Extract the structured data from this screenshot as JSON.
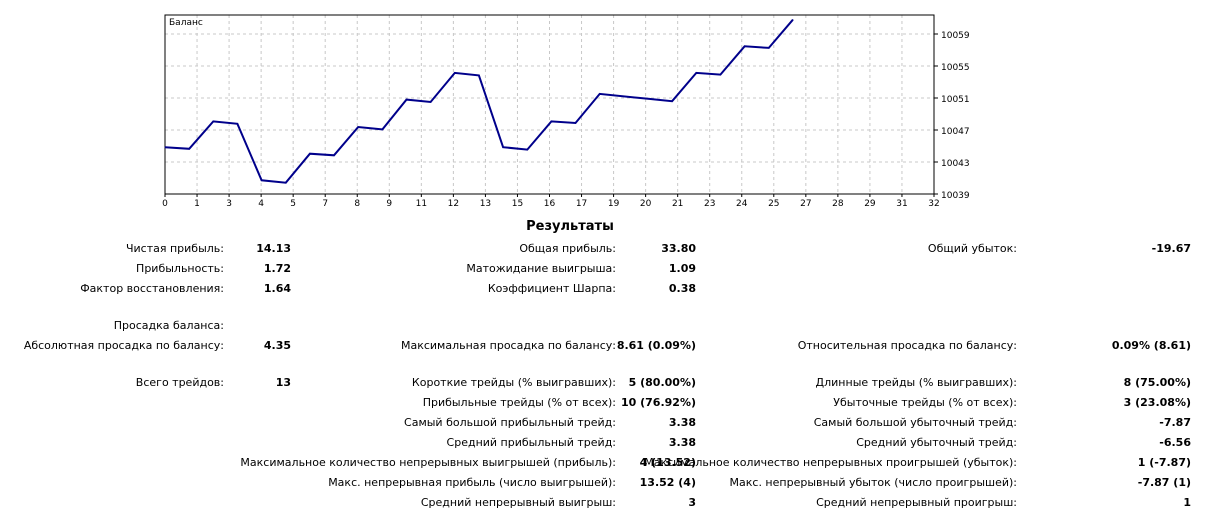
{
  "chart_data": {
    "type": "line",
    "title": "Баланс",
    "x_ticks": [
      "0",
      "1",
      "3",
      "4",
      "5",
      "7",
      "8",
      "9",
      "11",
      "12",
      "13",
      "15",
      "16",
      "17",
      "19",
      "20",
      "21",
      "23",
      "24",
      "25",
      "27",
      "28",
      "29",
      "31",
      "32"
    ],
    "y_ticks": [
      "10059",
      "10055",
      "10051",
      "10047",
      "10043",
      "10039"
    ],
    "ylim": [
      10039,
      10059
    ],
    "grid": true,
    "series": [
      {
        "color": "#00008b",
        "points": [
          {
            "x": 0,
            "y": 10044.4
          },
          {
            "x": 1,
            "y": 10044.2
          },
          {
            "x": 2,
            "y": 10047.6
          },
          {
            "x": 3,
            "y": 10047.3
          },
          {
            "x": 4,
            "y": 10040.3
          },
          {
            "x": 5,
            "y": 10040.0
          },
          {
            "x": 6,
            "y": 10043.6
          },
          {
            "x": 7,
            "y": 10043.4
          },
          {
            "x": 8,
            "y": 10046.9
          },
          {
            "x": 9,
            "y": 10046.6
          },
          {
            "x": 10,
            "y": 10050.3
          },
          {
            "x": 11,
            "y": 10050.0
          },
          {
            "x": 12,
            "y": 10053.6
          },
          {
            "x": 13,
            "y": 10053.3
          },
          {
            "x": 14,
            "y": 10044.4
          },
          {
            "x": 15,
            "y": 10044.1
          },
          {
            "x": 16,
            "y": 10047.6
          },
          {
            "x": 17,
            "y": 10047.4
          },
          {
            "x": 18,
            "y": 10051.0
          },
          {
            "x": 20,
            "y": 10050.4
          },
          {
            "x": 21,
            "y": 10050.1
          },
          {
            "x": 22,
            "y": 10053.6
          },
          {
            "x": 23,
            "y": 10053.4
          },
          {
            "x": 24,
            "y": 10056.9
          },
          {
            "x": 25,
            "y": 10056.7
          },
          {
            "x": 26,
            "y": 10060.2
          }
        ]
      }
    ]
  },
  "results": {
    "title": "Результаты",
    "rows": [
      {
        "y": 241,
        "c1": [
          "Чистая прибыль:",
          "14.13"
        ],
        "c2": [
          "Общая прибыль:",
          "33.80"
        ],
        "c3": [
          "Общий убыток:",
          "-19.67"
        ]
      },
      {
        "y": 261,
        "c1": [
          "Прибыльность:",
          "1.72"
        ],
        "c2": [
          "Матожидание выигрыша:",
          "1.09"
        ],
        "c3": null
      },
      {
        "y": 281,
        "c1": [
          "Фактор восстановления:",
          "1.64"
        ],
        "c2": [
          "Коэффициент Шарпа:",
          "0.38"
        ],
        "c3": null
      },
      {
        "y": 318,
        "c1": [
          "Просадка баланса:",
          ""
        ],
        "c2": null,
        "c3": null
      },
      {
        "y": 338,
        "c1": [
          "Абсолютная просадка по балансу:",
          "4.35"
        ],
        "c2": [
          "Максимальная просадка по балансу:",
          "8.61 (0.09%)"
        ],
        "c3": [
          "Относительная просадка по балансу:",
          "0.09% (8.61)"
        ]
      },
      {
        "y": 375,
        "c1": [
          "Всего трейдов:",
          "13"
        ],
        "c2": [
          "Короткие трейды (% выигравших):",
          "5 (80.00%)"
        ],
        "c3": [
          "Длинные трейды (% выигравших):",
          "8 (75.00%)"
        ]
      },
      {
        "y": 395,
        "c1": null,
        "c2": [
          "Прибыльные трейды (% от всех):",
          "10 (76.92%)"
        ],
        "c3": [
          "Убыточные трейды (% от всех):",
          "3 (23.08%)"
        ]
      },
      {
        "y": 415,
        "c1": null,
        "c2": [
          "Самый большой прибыльный трейд:",
          "3.38"
        ],
        "c3": [
          "Самый большой убыточный трейд:",
          "-7.87"
        ]
      },
      {
        "y": 435,
        "c1": null,
        "c2": [
          "Средний прибыльный трейд:",
          "3.38"
        ],
        "c3": [
          "Средний убыточный трейд:",
          "-6.56"
        ]
      },
      {
        "y": 455,
        "c1": null,
        "c2": [
          "Максимальное количество непрерывных выигрышей (прибыль):",
          "4 (13.52)"
        ],
        "c3": [
          "Максимальное количество непрерывных проигрышей (убыток):",
          "1 (-7.87)"
        ]
      },
      {
        "y": 475,
        "c1": null,
        "c2": [
          "Макс. непрерывная прибыль (число выигрышей):",
          "13.52 (4)"
        ],
        "c3": [
          "Макс. непрерывный убыток (число проигрышей):",
          "-7.87 (1)"
        ]
      },
      {
        "y": 495,
        "c1": null,
        "c2": [
          "Средний непрерывный выигрыш:",
          "3"
        ],
        "c3": [
          "Средний непрерывный проигрыш:",
          "1"
        ]
      }
    ]
  }
}
